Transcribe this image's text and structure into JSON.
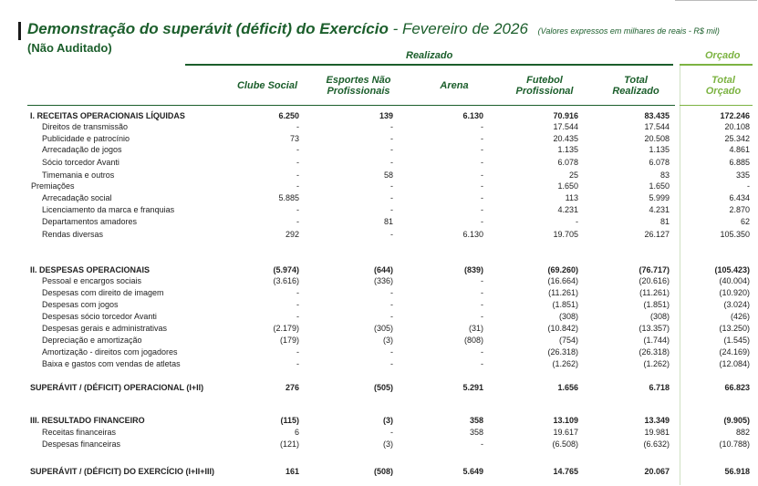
{
  "header": {
    "title": "Demonstração do superávit (déficit) do Exercício",
    "period": "- Fevereiro de 2026",
    "unit": "(Valores expressos em milhares de reais - R$ mil)",
    "subtitle": "(Não Auditado)",
    "group_realizado": "Realizado",
    "group_orcado": "Orçado"
  },
  "columns": [
    "Clube Social",
    "Esportes Não Profissionais",
    "Arena",
    "Futebol Profissional",
    "Total Realizado",
    "Total Orçado"
  ],
  "rows": [
    {
      "kind": "section",
      "label": "I. RECEITAS OPERACIONAIS LÍQUIDAS",
      "values": [
        "6.250",
        "139",
        "6.130",
        "70.916",
        "83.435",
        "172.246"
      ]
    },
    {
      "kind": "l2",
      "label": "Direitos de transmissão",
      "values": [
        "-",
        "-",
        "-",
        "17.544",
        "17.544",
        "20.108"
      ]
    },
    {
      "kind": "l2",
      "label": "Publicidade e patrocínio",
      "values": [
        "73",
        "-",
        "-",
        "20.435",
        "20.508",
        "25.342"
      ]
    },
    {
      "kind": "l2",
      "label": "Arrecadação de jogos",
      "values": [
        "-",
        "-",
        "-",
        "1.135",
        "1.135",
        "4.861"
      ]
    },
    {
      "kind": "l2",
      "label": "Sócio torcedor Avanti",
      "values": [
        "-",
        "-",
        "-",
        "6.078",
        "6.078",
        "6.885"
      ]
    },
    {
      "kind": "l2",
      "label": "Timemania e outros",
      "values": [
        "-",
        "58",
        "-",
        "25",
        "83",
        "335"
      ]
    },
    {
      "kind": "l1b",
      "label": "Premiações",
      "values": [
        "-",
        "-",
        "-",
        "1.650",
        "1.650",
        "-"
      ]
    },
    {
      "kind": "l2",
      "label": "Arrecadação social",
      "values": [
        "5.885",
        "-",
        "-",
        "113",
        "5.999",
        "6.434"
      ]
    },
    {
      "kind": "l2",
      "label": "Licenciamento da marca e franquias",
      "values": [
        "-",
        "-",
        "-",
        "4.231",
        "4.231",
        "2.870"
      ]
    },
    {
      "kind": "l2",
      "label": "Departamentos amadores",
      "values": [
        "-",
        "81",
        "-",
        "-",
        "81",
        "62"
      ]
    },
    {
      "kind": "l2",
      "label": "Rendas diversas",
      "values": [
        "292",
        "-",
        "6.130",
        "19.705",
        "26.127",
        "105.350"
      ]
    },
    {
      "kind": "section",
      "label": "II. DESPESAS OPERACIONAIS",
      "values": [
        "(5.974)",
        "(644)",
        "(839)",
        "(69.260)",
        "(76.717)",
        "(105.423)"
      ]
    },
    {
      "kind": "l2",
      "label": "Pessoal e encargos sociais",
      "values": [
        "(3.616)",
        "(336)",
        "-",
        "(16.664)",
        "(20.616)",
        "(40.004)"
      ]
    },
    {
      "kind": "l2",
      "label": "Despesas com direito de imagem",
      "values": [
        "-",
        "-",
        "-",
        "(11.261)",
        "(11.261)",
        "(10.920)"
      ]
    },
    {
      "kind": "l2",
      "label": "Despesas com jogos",
      "values": [
        "-",
        "-",
        "-",
        "(1.851)",
        "(1.851)",
        "(3.024)"
      ]
    },
    {
      "kind": "l2",
      "label": "Despesas sócio torcedor Avanti",
      "values": [
        "-",
        "-",
        "-",
        "(308)",
        "(308)",
        "(426)"
      ]
    },
    {
      "kind": "l2",
      "label": "Despesas gerais e administrativas",
      "values": [
        "(2.179)",
        "(305)",
        "(31)",
        "(10.842)",
        "(13.357)",
        "(13.250)"
      ]
    },
    {
      "kind": "l2",
      "label": "Depreciação e amortização",
      "values": [
        "(179)",
        "(3)",
        "(808)",
        "(754)",
        "(1.744)",
        "(1.545)"
      ]
    },
    {
      "kind": "l2",
      "label": "Amortização - direitos com jogadores",
      "values": [
        "-",
        "-",
        "-",
        "(26.318)",
        "(26.318)",
        "(24.169)"
      ]
    },
    {
      "kind": "l2",
      "label": "Baixa e gastos com vendas de atletas",
      "values": [
        "-",
        "-",
        "-",
        "(1.262)",
        "(1.262)",
        "(12.084)"
      ]
    },
    {
      "kind": "total",
      "label": "SUPERÁVIT / (DÉFICIT) OPERACIONAL (I+II)",
      "values": [
        "276",
        "(505)",
        "5.291",
        "1.656",
        "6.718",
        "66.823"
      ]
    },
    {
      "kind": "section",
      "label": "III. RESULTADO FINANCEIRO",
      "values": [
        "(115)",
        "(3)",
        "358",
        "13.109",
        "13.349",
        "(9.905)"
      ]
    },
    {
      "kind": "l2",
      "label": "Receitas financeiras",
      "values": [
        "6",
        "-",
        "358",
        "19.617",
        "19.981",
        "882"
      ]
    },
    {
      "kind": "l2",
      "label": "Despesas financeiras",
      "values": [
        "(121)",
        "(3)",
        "-",
        "(6.508)",
        "(6.632)",
        "(10.788)"
      ]
    },
    {
      "kind": "total",
      "label": "SUPERÁVIT / (DÉFICIT) DO EXERCÍCIO (I+II+III)",
      "values": [
        "161",
        "(508)",
        "5.649",
        "14.765",
        "20.067",
        "56.918"
      ]
    }
  ]
}
